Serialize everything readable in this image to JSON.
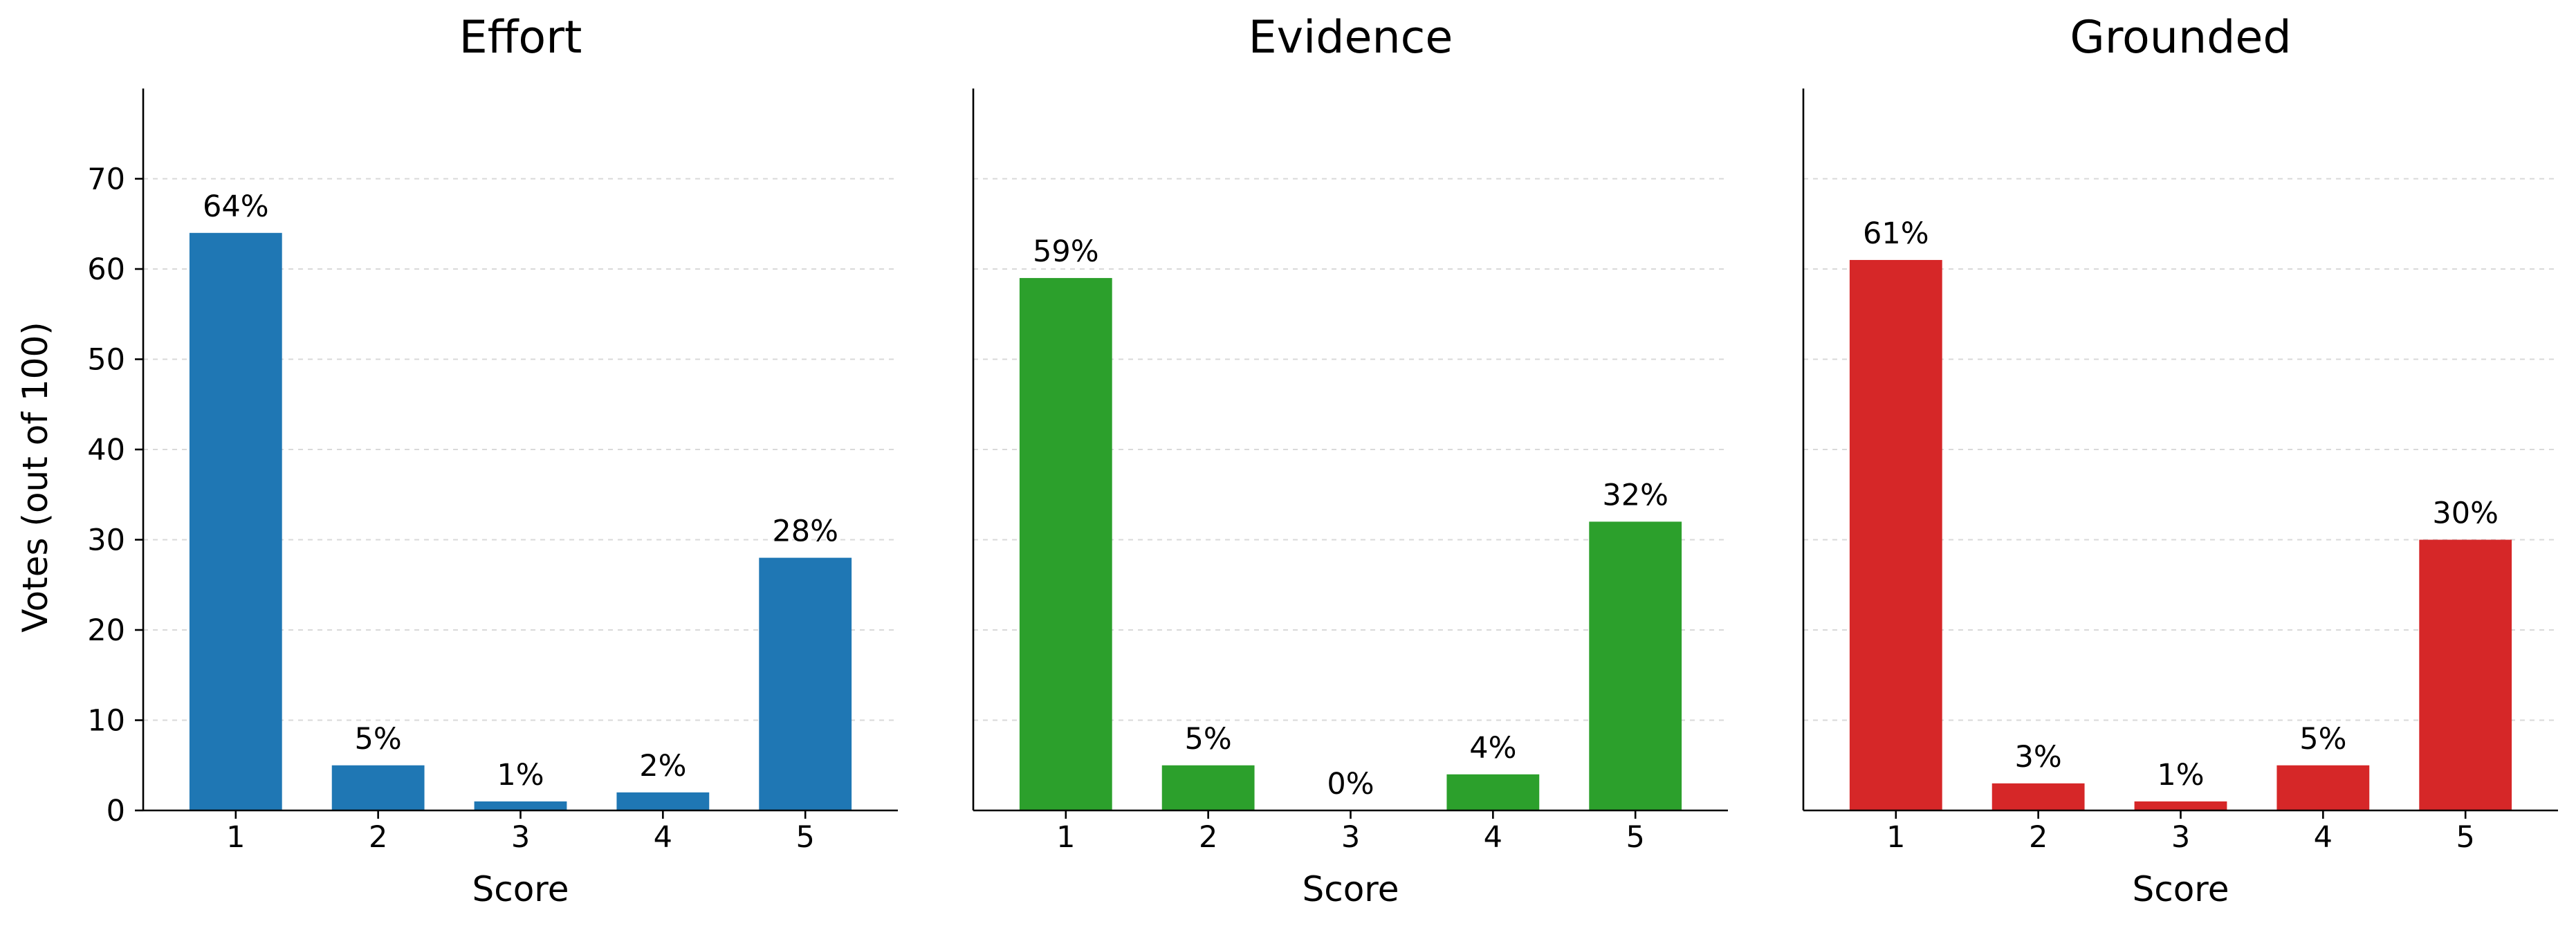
{
  "chart_data": [
    {
      "type": "bar",
      "title": "Effort",
      "xlabel": "Score",
      "ylabel": "Votes (out of 100)",
      "categories": [
        "1",
        "2",
        "3",
        "4",
        "5"
      ],
      "values": [
        64,
        5,
        1,
        2,
        28
      ],
      "labels": [
        "64%",
        "5%",
        "1%",
        "2%",
        "28%"
      ],
      "color": "#1f77b4",
      "ylim": [
        0,
        80
      ],
      "yticks": [
        "0",
        "10",
        "20",
        "30",
        "40",
        "50",
        "60",
        "70"
      ],
      "grid": "y-dashed"
    },
    {
      "type": "bar",
      "title": "Evidence",
      "xlabel": "Score",
      "categories": [
        "1",
        "2",
        "3",
        "4",
        "5"
      ],
      "values": [
        59,
        5,
        0,
        4,
        32
      ],
      "labels": [
        "59%",
        "5%",
        "0%",
        "4%",
        "32%"
      ],
      "color": "#2ca02c",
      "ylim": [
        0,
        80
      ],
      "grid": "y-dashed"
    },
    {
      "type": "bar",
      "title": "Grounded",
      "xlabel": "Score",
      "categories": [
        "1",
        "2",
        "3",
        "4",
        "5"
      ],
      "values": [
        61,
        3,
        1,
        5,
        30
      ],
      "labels": [
        "61%",
        "3%",
        "1%",
        "5%",
        "30%"
      ],
      "color": "#d62728",
      "ylim": [
        0,
        80
      ],
      "grid": "y-dashed"
    }
  ]
}
